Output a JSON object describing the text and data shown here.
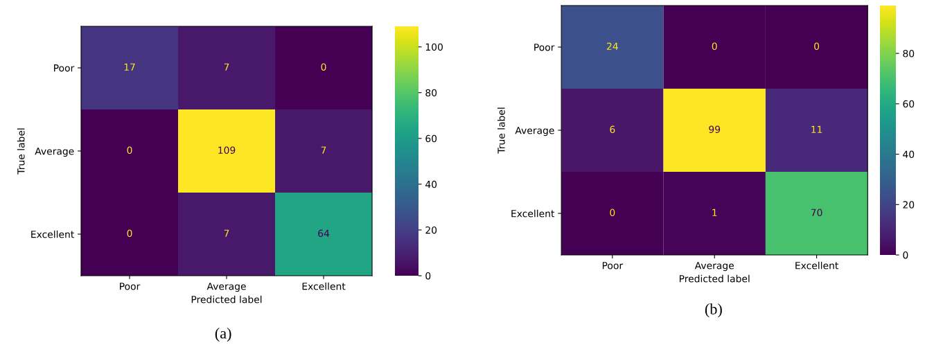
{
  "chart_data": [
    {
      "type": "heatmap",
      "xlabel": "Predicted label",
      "ylabel": "True label",
      "categories": [
        "Poor",
        "Average",
        "Excellent"
      ],
      "y_categories": [
        "Poor",
        "Average",
        "Excellent"
      ],
      "cells": [
        [
          17,
          7,
          0
        ],
        [
          0,
          109,
          7
        ],
        [
          0,
          7,
          64
        ]
      ],
      "clim": [
        0,
        109
      ],
      "cticks": [
        0,
        20,
        40,
        60,
        80,
        100
      ],
      "data_labels": true,
      "annotations": [
        "(a)"
      ]
    },
    {
      "type": "heatmap",
      "xlabel": "Predicted label",
      "ylabel": "True label",
      "categories": [
        "Poor",
        "Average",
        "Excellent"
      ],
      "y_categories": [
        "Poor",
        "Average",
        "Excellent"
      ],
      "cells": [
        [
          24,
          0,
          0
        ],
        [
          6,
          99,
          11
        ],
        [
          0,
          1,
          70
        ]
      ],
      "clim": [
        0,
        99
      ],
      "cticks": [
        0,
        20,
        40,
        60,
        80
      ],
      "data_labels": true,
      "annotations": [
        "(b)"
      ]
    }
  ]
}
